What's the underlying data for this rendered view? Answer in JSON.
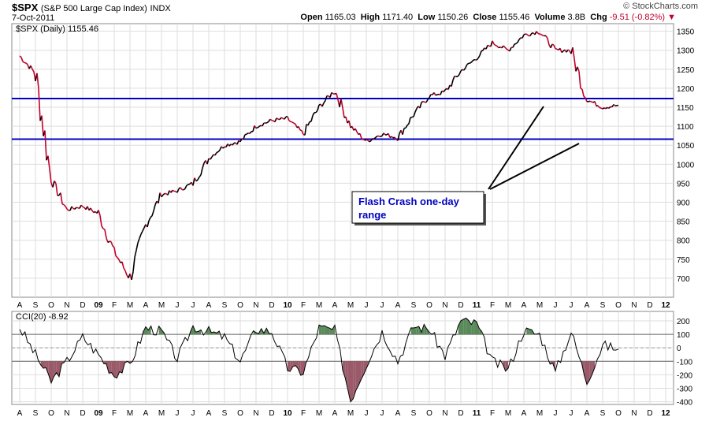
{
  "header": {
    "symbol": "$SPX",
    "name": "(S&P 500 Large Cap Index)",
    "exchange": "INDX",
    "date": "7-Oct-2011",
    "brand": "© StockCharts.com",
    "open_label": "Open",
    "open": "1165.03",
    "high_label": "High",
    "high": "1171.40",
    "low_label": "Low",
    "low": "1150.26",
    "close_label": "Close",
    "close": "1155.46",
    "volume_label": "Volume",
    "volume": "3.8B",
    "chg_label": "Chg",
    "chg": "-9.51 (-0.82%)"
  },
  "colors": {
    "up": "#000000",
    "down": "#c0002a",
    "hline": "#0000c0",
    "cci_pos": "#5a8a5a",
    "cci_neg": "#9a5a6a",
    "annot": "#0000c0"
  },
  "annotation": {
    "line1": "Flash Crash one-day",
    "line2": "range"
  },
  "chart_data": [
    {
      "type": "line",
      "legend": "$SPX (Daily) 1155.46",
      "ylim": [
        650,
        1370
      ],
      "yticks": [
        700,
        750,
        800,
        850,
        900,
        950,
        1000,
        1050,
        1100,
        1150,
        1200,
        1250,
        1300,
        1350
      ],
      "xticks": [
        "A",
        "S",
        "O",
        "N",
        "D",
        "09",
        "F",
        "M",
        "A",
        "M",
        "J",
        "J",
        "A",
        "S",
        "O",
        "N",
        "D",
        "10",
        "F",
        "M",
        "A",
        "M",
        "J",
        "J",
        "A",
        "S",
        "O",
        "N",
        "D",
        "11",
        "F",
        "M",
        "A",
        "M",
        "J",
        "J",
        "A",
        "S",
        "O",
        "N",
        "D",
        "12"
      ],
      "hlines": [
        1173,
        1066
      ],
      "x": [
        "2008-08",
        "2008-09",
        "2008-10",
        "2008-11",
        "2008-12",
        "2009-01",
        "2009-02",
        "2009-03",
        "2009-04",
        "2009-05",
        "2009-06",
        "2009-07",
        "2009-08",
        "2009-09",
        "2009-10",
        "2009-11",
        "2009-12",
        "2010-01",
        "2010-02",
        "2010-03",
        "2010-04",
        "2010-05",
        "2010-06",
        "2010-07",
        "2010-08",
        "2010-09",
        "2010-10",
        "2010-11",
        "2010-12",
        "2011-01",
        "2011-02",
        "2011-03",
        "2011-04",
        "2011-05",
        "2011-06",
        "2011-07",
        "2011-08",
        "2011-09",
        "2011-10"
      ],
      "values": [
        1285,
        1240,
        960,
        880,
        890,
        870,
        770,
        700,
        840,
        920,
        930,
        950,
        1015,
        1050,
        1060,
        1100,
        1115,
        1120,
        1080,
        1150,
        1195,
        1100,
        1060,
        1080,
        1070,
        1130,
        1180,
        1190,
        1245,
        1280,
        1320,
        1300,
        1340,
        1350,
        1300,
        1300,
        1170,
        1150,
        1155
      ]
    },
    {
      "type": "line",
      "legend": "CCI(20) -8.92",
      "ylim": [
        -420,
        270
      ],
      "yticks": [
        200,
        100,
        0,
        -100,
        -200,
        -300,
        -400
      ],
      "hlines": [
        100,
        -100
      ],
      "x": [
        "2008-08",
        "2008-09",
        "2008-10",
        "2008-11",
        "2008-12",
        "2009-01",
        "2009-02",
        "2009-03",
        "2009-04",
        "2009-05",
        "2009-06",
        "2009-07",
        "2009-08",
        "2009-09",
        "2009-10",
        "2009-11",
        "2009-12",
        "2010-01",
        "2010-02",
        "2010-03",
        "2010-04",
        "2010-05",
        "2010-06",
        "2010-07",
        "2010-08",
        "2010-09",
        "2010-10",
        "2010-11",
        "2010-12",
        "2011-01",
        "2011-02",
        "2011-03",
        "2011-04",
        "2011-05",
        "2011-06",
        "2011-07",
        "2011-08",
        "2011-09",
        "2011-10"
      ],
      "values": [
        150,
        -50,
        -250,
        -100,
        80,
        -50,
        -200,
        -120,
        150,
        120,
        -80,
        160,
        120,
        80,
        -100,
        140,
        120,
        -150,
        -180,
        150,
        130,
        -390,
        -120,
        120,
        -100,
        160,
        140,
        -60,
        200,
        180,
        -100,
        -160,
        130,
        100,
        -180,
        120,
        -250,
        20,
        -9
      ]
    }
  ]
}
